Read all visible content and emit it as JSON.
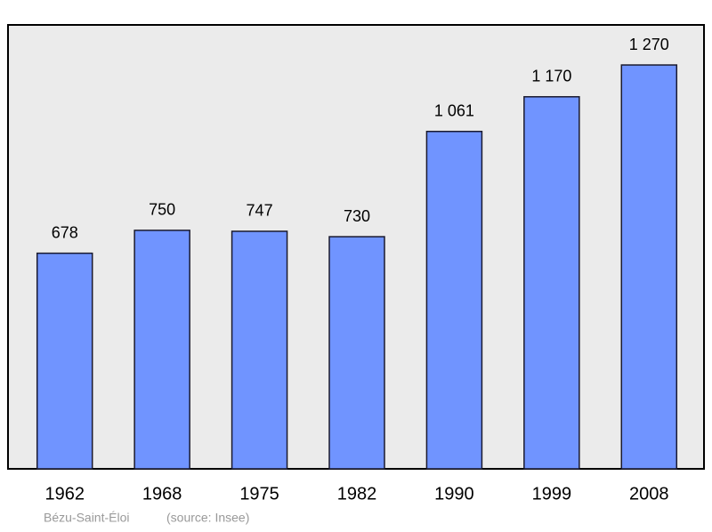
{
  "chart_data": {
    "type": "bar",
    "title": "Bézu-Saint-Éloi",
    "source": "(source: Insee)",
    "categories": [
      "1962",
      "1968",
      "1975",
      "1982",
      "1990",
      "1999",
      "2008"
    ],
    "values": [
      678,
      750,
      747,
      730,
      1061,
      1170,
      1270
    ],
    "value_labels": [
      "678",
      "750",
      "747",
      "730",
      "1 061",
      "1 170",
      "1 270"
    ],
    "color": "#7094ff",
    "ylim": [
      0,
      1396
    ]
  }
}
